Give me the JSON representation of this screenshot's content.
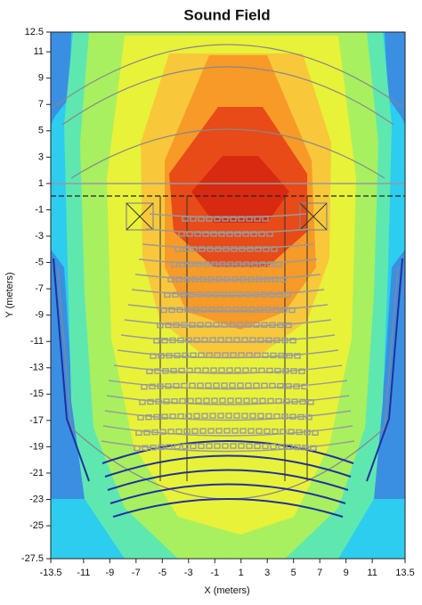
{
  "chart_data": {
    "type": "heatmap",
    "title": "Sound Field",
    "x_label": "X (meters)",
    "y_label": "Y (meters)",
    "xlim": [
      -13.5,
      13.5
    ],
    "ylim": [
      -27.5,
      12.5
    ],
    "xticks": [
      -13.5,
      -11,
      -9,
      -7,
      -5,
      -3,
      -1,
      1,
      3,
      5,
      7,
      9,
      11,
      13.5
    ],
    "yticks": [
      12.5,
      11,
      9,
      7,
      5,
      3,
      1,
      -1,
      -3,
      -5,
      -7,
      -9,
      -11,
      -13,
      -15,
      -17,
      -19,
      -21,
      -23,
      -25,
      -27.5
    ]
  }
}
